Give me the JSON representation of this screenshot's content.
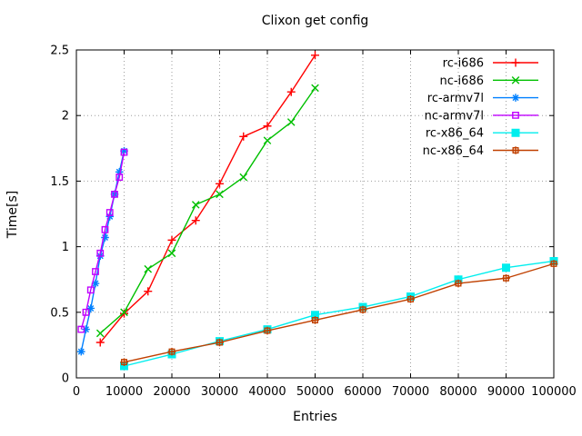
{
  "page": {
    "background": "#ffffff",
    "text_color": "#000000",
    "grid_color": "#9e9e9e",
    "axis_color": "#000000"
  },
  "chart_data": {
    "type": "line",
    "title": "Clixon get config",
    "xlabel": "Entries",
    "ylabel": "Time[s]",
    "xlim": [
      0,
      100000
    ],
    "ylim": [
      0,
      2.5
    ],
    "grid": true,
    "legend_position": "top-right-inside",
    "xticks": {
      "values": [
        0,
        10000,
        20000,
        30000,
        40000,
        50000,
        60000,
        70000,
        80000,
        90000,
        100000
      ],
      "labels": [
        "0",
        "10000",
        "20000",
        "30000",
        "40000",
        "50000",
        "60000",
        "70000",
        "80000",
        "90000",
        "100000"
      ]
    },
    "yticks": {
      "values": [
        0,
        0.5,
        1,
        1.5,
        2,
        2.5
      ],
      "labels": [
        "0",
        "0.5",
        "1",
        "1.5",
        "2",
        "2.5"
      ]
    },
    "series": [
      {
        "name": "rc-i686",
        "color": "#ff0000",
        "marker": "plus",
        "x": [
          5000,
          10000,
          15000,
          20000,
          25000,
          30000,
          35000,
          40000,
          45000,
          50000
        ],
        "y": [
          0.27,
          0.49,
          0.66,
          1.05,
          1.2,
          1.48,
          1.84,
          1.92,
          2.18,
          2.46
        ]
      },
      {
        "name": "nc-i686",
        "color": "#00c000",
        "marker": "cross",
        "x": [
          5000,
          10000,
          15000,
          20000,
          25000,
          30000,
          35000,
          40000,
          45000,
          50000
        ],
        "y": [
          0.34,
          0.5,
          0.83,
          0.95,
          1.32,
          1.4,
          1.53,
          1.81,
          1.95,
          2.21
        ]
      },
      {
        "name": "rc-armv7l",
        "color": "#0080ff",
        "marker": "asterisk",
        "x": [
          1000,
          2000,
          3000,
          4000,
          5000,
          6000,
          7000,
          8000,
          9000,
          10000
        ],
        "y": [
          0.2,
          0.37,
          0.53,
          0.72,
          0.93,
          1.07,
          1.23,
          1.4,
          1.57,
          1.73
        ]
      },
      {
        "name": "nc-armv7l",
        "color": "#c000ff",
        "marker": "square-open",
        "x": [
          1000,
          2000,
          3000,
          4000,
          5000,
          6000,
          7000,
          8000,
          9000,
          10000
        ],
        "y": [
          0.37,
          0.5,
          0.67,
          0.81,
          0.95,
          1.13,
          1.26,
          1.4,
          1.53,
          1.72
        ]
      },
      {
        "name": "rc-x86_64",
        "color": "#00eeee",
        "marker": "square-filled",
        "x": [
          10000,
          20000,
          30000,
          40000,
          50000,
          60000,
          70000,
          80000,
          90000,
          100000
        ],
        "y": [
          0.09,
          0.18,
          0.28,
          0.37,
          0.48,
          0.54,
          0.62,
          0.75,
          0.84,
          0.89
        ]
      },
      {
        "name": "nc-x86_64",
        "color": "#c04000",
        "marker": "square-plus",
        "x": [
          10000,
          20000,
          30000,
          40000,
          50000,
          60000,
          70000,
          80000,
          90000,
          100000
        ],
        "y": [
          0.12,
          0.2,
          0.27,
          0.36,
          0.44,
          0.52,
          0.6,
          0.72,
          0.76,
          0.87
        ]
      }
    ]
  }
}
